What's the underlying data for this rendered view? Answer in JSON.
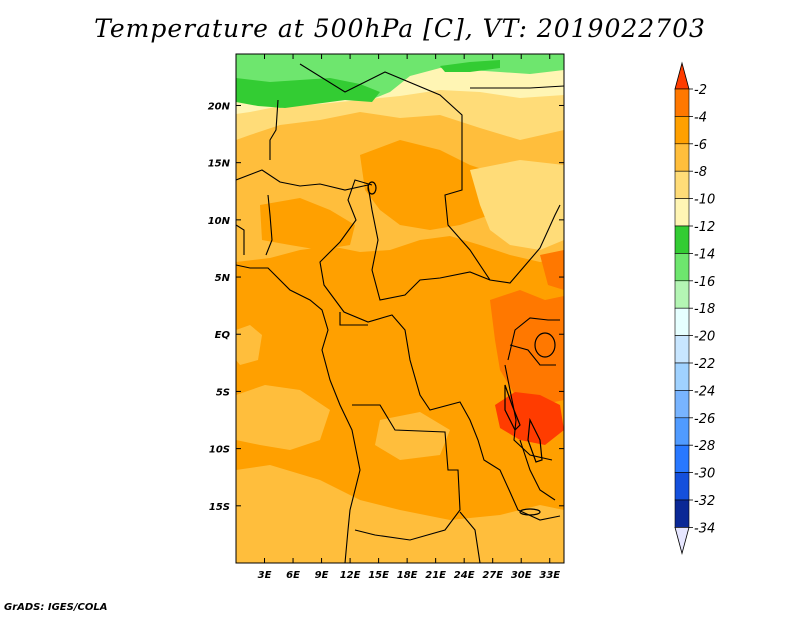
{
  "title": "Temperature at 500hPa [C], VT: 2019022703",
  "footer": "GrADS: IGES/COLA",
  "map": {
    "lon_range": [
      0,
      34.5
    ],
    "lat_range": [
      -20,
      24.5
    ],
    "x_ticks": [
      {
        "value": 3,
        "label": "3E"
      },
      {
        "value": 6,
        "label": "6E"
      },
      {
        "value": 9,
        "label": "9E"
      },
      {
        "value": 12,
        "label": "12E"
      },
      {
        "value": 15,
        "label": "15E"
      },
      {
        "value": 18,
        "label": "18E"
      },
      {
        "value": 21,
        "label": "21E"
      },
      {
        "value": 24,
        "label": "24E"
      },
      {
        "value": 27,
        "label": "27E"
      },
      {
        "value": 30,
        "label": "30E"
      },
      {
        "value": 33,
        "label": "33E"
      }
    ],
    "y_ticks": [
      {
        "value": 20,
        "label": "20N"
      },
      {
        "value": 15,
        "label": "15N"
      },
      {
        "value": 10,
        "label": "10N"
      },
      {
        "value": 5,
        "label": "5N"
      },
      {
        "value": 0,
        "label": "EQ"
      },
      {
        "value": -5,
        "label": "5S"
      },
      {
        "value": -10,
        "label": "10S"
      },
      {
        "value": -15,
        "label": "15S"
      }
    ]
  },
  "colorbar": {
    "levels": [
      "-2",
      "-4",
      "-6",
      "-8",
      "-10",
      "-12",
      "-14",
      "-16",
      "-18",
      "-20",
      "-22",
      "-24",
      "-26",
      "-28",
      "-30",
      "-32",
      "-34"
    ],
    "colors": [
      "#ff3c00",
      "#ff7800",
      "#ffa000",
      "#ffbe3c",
      "#ffdc78",
      "#fff5b4",
      "#33cc33",
      "#6ee66e",
      "#b4f5b4",
      "#e6ffff",
      "#c8e6ff",
      "#a0d2ff",
      "#78b4ff",
      "#509bff",
      "#2878ff",
      "#1450dc",
      "#0a2896",
      "#000064"
    ],
    "top_color": "#ff3c00",
    "bottom_color": "#e6e6ff"
  },
  "colors": {
    "field_main": "#ffa000",
    "field_light": "#ffbe3c",
    "field_pale": "#ffdc78",
    "field_cream": "#fff5b4",
    "field_green": "#33cc33",
    "field_lightgreen": "#6ee66e",
    "field_warm": "#ff7800",
    "field_hot": "#ff3c00"
  }
}
